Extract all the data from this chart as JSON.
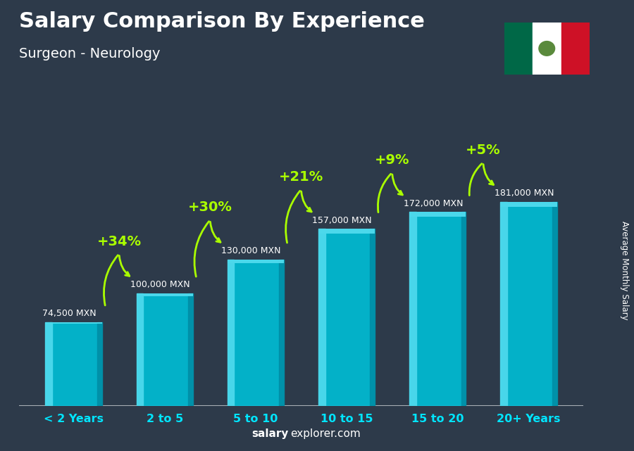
{
  "title": "Salary Comparison By Experience",
  "subtitle": "Surgeon - Neurology",
  "categories": [
    "< 2 Years",
    "2 to 5",
    "5 to 10",
    "10 to 15",
    "15 to 20",
    "20+ Years"
  ],
  "values": [
    74500,
    100000,
    130000,
    157000,
    172000,
    181000
  ],
  "salary_labels": [
    "74,500 MXN",
    "100,000 MXN",
    "130,000 MXN",
    "157,000 MXN",
    "172,000 MXN",
    "181,000 MXN"
  ],
  "pct_labels": [
    "+34%",
    "+30%",
    "+21%",
    "+9%",
    "+5%"
  ],
  "bar_color_face": "#00bcd4",
  "bar_color_light": "#4dd9ec",
  "bar_color_side": "#0090a8",
  "ylabel": "Average Monthly Salary",
  "watermark_bold": "salary",
  "watermark_normal": "explorer.com",
  "ylim": [
    0,
    220000
  ],
  "pct_color": "#aaff00",
  "arrow_color": "#aaff00",
  "xtick_color": "#00e5ff",
  "bg_color": "#2d3a4a",
  "flag_green": "#006847",
  "flag_white": "#ffffff",
  "flag_red": "#ce1126"
}
